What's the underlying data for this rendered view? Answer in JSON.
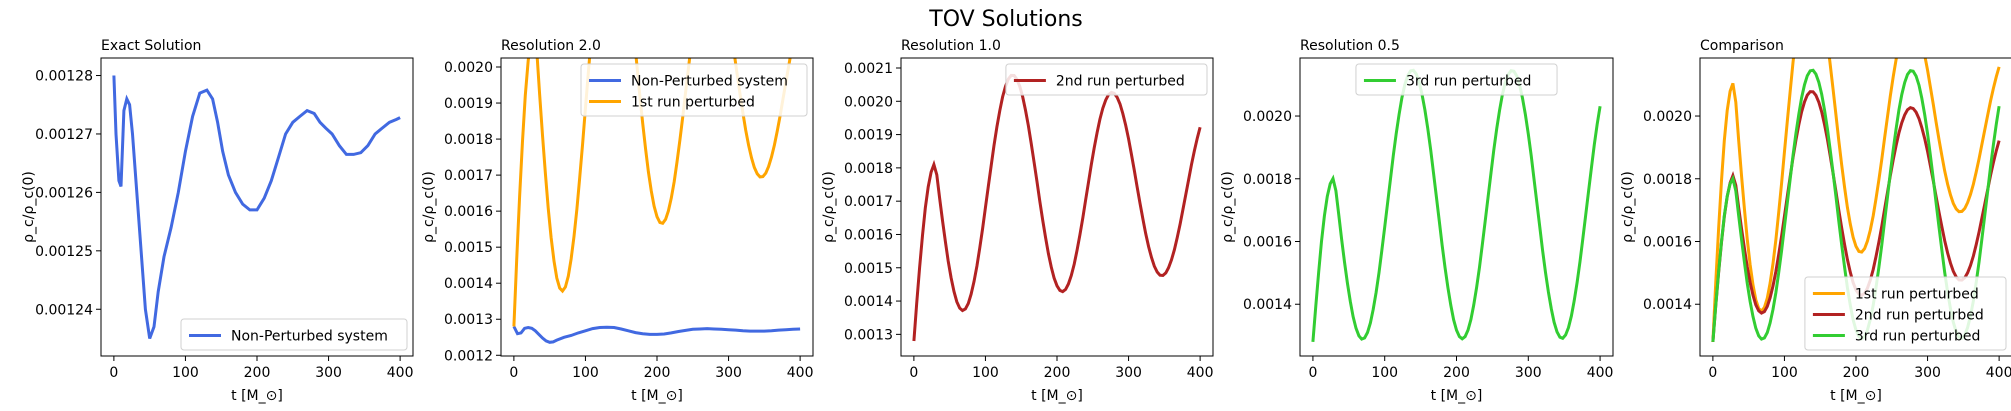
{
  "figure": {
    "title": "TOV Solutions"
  },
  "colors": {
    "Non-Perturbed system": "#4169e1",
    "1st run perturbed": "#ffa500",
    "2nd run perturbed": "#b22222",
    "3rd run perturbed": "#32cd32"
  },
  "chart_data": [
    {
      "type": "line",
      "title": "Exact Solution",
      "xlabel": "t [M_⊙]",
      "ylabel": "ρ_c/ρ_c(0)",
      "xlim": [
        -18,
        418
      ],
      "ylim": [
        0.001232,
        0.001283
      ],
      "xticks": [
        0,
        100,
        200,
        300,
        400
      ],
      "yticks": [
        0.00124,
        0.00125,
        0.00126,
        0.00127,
        0.00128
      ],
      "ytick_labels": [
        "0.00124",
        "0.00125",
        "0.00126",
        "0.00127",
        "0.00128"
      ],
      "legend_loc": "lower-right",
      "series": [
        {
          "name": "Non-Perturbed system",
          "x": [
            0,
            3,
            7,
            10,
            14,
            18,
            22,
            26,
            32,
            38,
            44,
            50,
            56,
            62,
            70,
            80,
            90,
            100,
            110,
            120,
            130,
            138,
            145,
            152,
            160,
            170,
            180,
            190,
            200,
            210,
            220,
            230,
            240,
            250,
            260,
            270,
            280,
            288,
            296,
            305,
            315,
            325,
            335,
            345,
            355,
            365,
            375,
            385,
            395,
            400
          ],
          "y": [
            0.00128,
            0.00127,
            0.001262,
            0.001261,
            0.001274,
            0.001276,
            0.001275,
            0.00127,
            0.00126,
            0.00125,
            0.00124,
            0.001235,
            0.001237,
            0.001243,
            0.001249,
            0.001254,
            0.00126,
            0.001267,
            0.001273,
            0.001277,
            0.0012775,
            0.001276,
            0.001272,
            0.001267,
            0.001263,
            0.00126,
            0.001258,
            0.001257,
            0.001257,
            0.001259,
            0.001262,
            0.001266,
            0.00127,
            0.001272,
            0.001273,
            0.001274,
            0.0012735,
            0.001272,
            0.001271,
            0.00127,
            0.001268,
            0.0012665,
            0.0012665,
            0.0012668,
            0.001268,
            0.00127,
            0.001271,
            0.001272,
            0.0012725,
            0.0012728
          ]
        }
      ]
    },
    {
      "type": "line",
      "title": "Resolution 2.0",
      "xlabel": "t [M_⊙]",
      "ylabel": "ρ_c/ρ_c(0)",
      "xlim": [
        -18,
        418
      ],
      "ylim": [
        0.001198,
        0.002025
      ],
      "xticks": [
        0,
        100,
        200,
        300,
        400
      ],
      "yticks": [
        0.0012,
        0.0013,
        0.0014,
        0.0015,
        0.0016,
        0.0017,
        0.0018,
        0.0019,
        0.002
      ],
      "ytick_labels": [
        "0.0012",
        "0.0013",
        "0.0014",
        "0.0015",
        "0.0016",
        "0.0017",
        "0.0018",
        "0.0019",
        "0.0020"
      ],
      "legend_loc": "upper-right",
      "series": [
        {
          "name": "Non-Perturbed system",
          "x": [
            0,
            5,
            10,
            15,
            20,
            25,
            30,
            35,
            40,
            45,
            50,
            55,
            60,
            70,
            80,
            90,
            100,
            110,
            120,
            130,
            140,
            150,
            160,
            170,
            180,
            190,
            200,
            210,
            220,
            230,
            240,
            250,
            260,
            270,
            280,
            290,
            300,
            310,
            320,
            330,
            340,
            350,
            360,
            370,
            380,
            390,
            400
          ],
          "y": [
            0.00128,
            0.00126,
            0.001262,
            0.001275,
            0.001277,
            0.001275,
            0.001268,
            0.001258,
            0.001248,
            0.00124,
            0.001236,
            0.001237,
            0.001242,
            0.00125,
            0.001255,
            0.001262,
            0.001268,
            0.001274,
            0.001277,
            0.001278,
            0.001277,
            0.001273,
            0.001268,
            0.001263,
            0.00126,
            0.001258,
            0.001258,
            0.001259,
            0.001262,
            0.001266,
            0.001269,
            0.001272,
            0.001273,
            0.001274,
            0.001273,
            0.001272,
            0.001271,
            0.00127,
            0.001268,
            0.001267,
            0.001267,
            0.001267,
            0.001268,
            0.00127,
            0.001271,
            0.001272,
            0.001273
          ]
        }
      ],
      "series_2": [
        {
          "name": "1st run perturbed"
        }
      ]
    },
    {
      "type": "line",
      "title": "Resolution 1.0",
      "xlabel": "t [M_⊙]",
      "ylabel": "ρ_c/ρ_c(0)",
      "xlim": [
        -18,
        418
      ],
      "ylim": [
        0.001235,
        0.00213
      ],
      "xticks": [
        0,
        100,
        200,
        300,
        400
      ],
      "yticks": [
        0.0013,
        0.0014,
        0.0015,
        0.0016,
        0.0017,
        0.0018,
        0.0019,
        0.002,
        0.0021
      ],
      "ytick_labels": [
        "0.0013",
        "0.0014",
        "0.0015",
        "0.0016",
        "0.0017",
        "0.0018",
        "0.0019",
        "0.0020",
        "0.0021"
      ],
      "legend_loc": "upper-right",
      "series": [
        {
          "name": "2nd run perturbed"
        }
      ]
    },
    {
      "type": "line",
      "title": "Resolution 0.5",
      "xlabel": "t [M_⊙]",
      "ylabel": "ρ_c/ρ_c(0)",
      "xlim": [
        -18,
        418
      ],
      "ylim": [
        0.001235,
        0.002185
      ],
      "xticks": [
        0,
        100,
        200,
        300,
        400
      ],
      "yticks": [
        0.0014,
        0.0016,
        0.0018,
        0.002
      ],
      "ytick_labels": [
        "0.0014",
        "0.0016",
        "0.0018",
        "0.0020"
      ],
      "legend_loc": "upper-center",
      "series": [
        {
          "name": "3rd run perturbed"
        }
      ]
    },
    {
      "type": "line",
      "title": "Comparison",
      "xlabel": "t [M_⊙]",
      "ylabel": "ρ_c/ρ_c(0)",
      "xlim": [
        -18,
        418
      ],
      "ylim": [
        0.001235,
        0.002185
      ],
      "xticks": [
        0,
        100,
        200,
        300,
        400
      ],
      "yticks": [
        0.0014,
        0.0016,
        0.0018,
        0.002
      ],
      "ytick_labels": [
        "0.0014",
        "0.0016",
        "0.0018",
        "0.0020"
      ],
      "legend_loc": "lower-right",
      "series": [
        {
          "name": "1st run perturbed"
        },
        {
          "name": "2nd run perturbed"
        },
        {
          "name": "3rd run perturbed"
        }
      ]
    }
  ]
}
